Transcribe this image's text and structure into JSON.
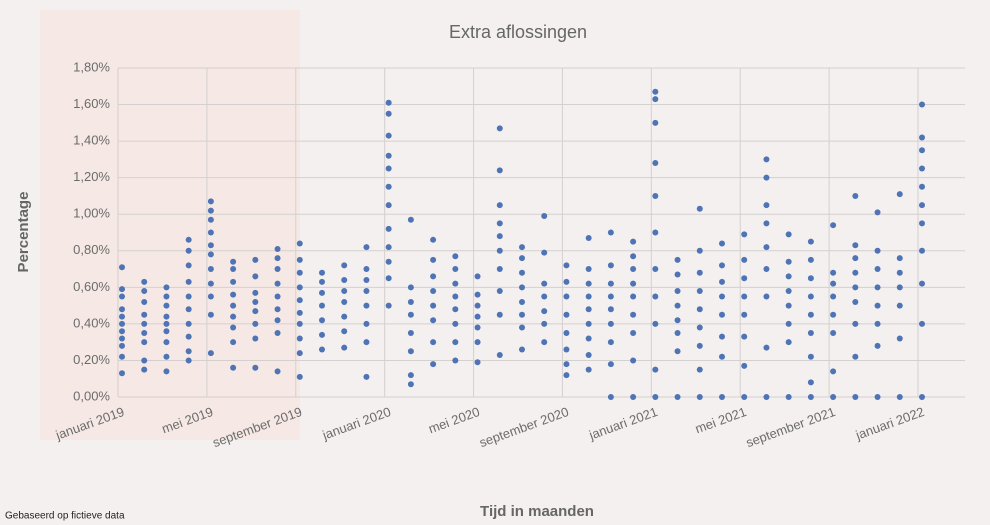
{
  "chart_data": {
    "type": "strip",
    "title": "Extra aflossingen",
    "x_label": "Tijd in maanden",
    "y_label": "Percentage",
    "footnote": "Gebaseerd op fictieve data",
    "color": "#4f74b6",
    "grid": true,
    "categories": [
      "januari 2019",
      null,
      null,
      null,
      "mei 2019",
      null,
      null,
      null,
      "september 2019",
      null,
      null,
      null,
      "januari 2020",
      null,
      null,
      null,
      "mei 2020",
      null,
      null,
      null,
      "september 2020",
      null,
      null,
      null,
      "januari 2021",
      null,
      null,
      null,
      "mei 2021",
      null,
      null,
      null,
      "september 2021",
      null,
      null,
      null,
      "januari 2022"
    ],
    "values": [
      [
        0.13,
        0.22,
        0.28,
        0.32,
        0.36,
        0.4,
        0.44,
        0.48,
        0.55,
        0.59,
        0.71
      ],
      [
        0.15,
        0.2,
        0.3,
        0.35,
        0.4,
        0.45,
        0.52,
        0.58,
        0.63
      ],
      [
        0.14,
        0.22,
        0.3,
        0.36,
        0.4,
        0.44,
        0.5,
        0.55,
        0.6
      ],
      [
        0.2,
        0.25,
        0.33,
        0.4,
        0.48,
        0.55,
        0.63,
        0.72,
        0.8,
        0.86
      ],
      [
        0.24,
        0.45,
        0.55,
        0.62,
        0.7,
        0.78,
        0.83,
        0.9,
        0.97,
        1.02,
        1.07
      ],
      [
        0.16,
        0.3,
        0.38,
        0.44,
        0.5,
        0.56,
        0.63,
        0.7,
        0.74
      ],
      [
        0.16,
        0.32,
        0.4,
        0.47,
        0.52,
        0.57,
        0.66,
        0.75
      ],
      [
        0.14,
        0.35,
        0.42,
        0.48,
        0.55,
        0.62,
        0.7,
        0.76,
        0.81
      ],
      [
        0.11,
        0.24,
        0.32,
        0.4,
        0.46,
        0.53,
        0.6,
        0.68,
        0.75,
        0.84
      ],
      [
        0.26,
        0.34,
        0.42,
        0.5,
        0.57,
        0.63,
        0.68
      ],
      [
        0.27,
        0.36,
        0.44,
        0.52,
        0.58,
        0.64,
        0.72
      ],
      [
        0.11,
        0.3,
        0.4,
        0.5,
        0.58,
        0.64,
        0.7,
        0.82
      ],
      [
        0.5,
        0.65,
        0.74,
        0.82,
        0.92,
        1.05,
        1.15,
        1.25,
        1.32,
        1.43,
        1.55,
        1.61
      ],
      [
        0.07,
        0.12,
        0.25,
        0.35,
        0.45,
        0.52,
        0.6,
        0.97
      ],
      [
        0.18,
        0.3,
        0.42,
        0.5,
        0.58,
        0.66,
        0.75,
        0.86
      ],
      [
        0.2,
        0.3,
        0.4,
        0.48,
        0.55,
        0.62,
        0.7,
        0.77
      ],
      [
        0.19,
        0.3,
        0.38,
        0.44,
        0.5,
        0.56,
        0.66
      ],
      [
        0.23,
        0.45,
        0.58,
        0.7,
        0.8,
        0.88,
        0.95,
        1.05,
        1.24,
        1.47
      ],
      [
        0.26,
        0.38,
        0.45,
        0.52,
        0.6,
        0.68,
        0.76,
        0.82
      ],
      [
        0.3,
        0.4,
        0.47,
        0.55,
        0.62,
        0.79,
        0.99
      ],
      [
        0.12,
        0.18,
        0.26,
        0.35,
        0.45,
        0.55,
        0.63,
        0.72
      ],
      [
        0.15,
        0.23,
        0.32,
        0.4,
        0.48,
        0.55,
        0.62,
        0.7,
        0.87
      ],
      [
        0.0,
        0.18,
        0.3,
        0.4,
        0.48,
        0.55,
        0.62,
        0.72,
        0.9
      ],
      [
        0.0,
        0.2,
        0.35,
        0.45,
        0.55,
        0.62,
        0.7,
        0.77,
        0.85
      ],
      [
        0.0,
        0.15,
        0.4,
        0.55,
        0.7,
        0.9,
        1.1,
        1.28,
        1.5,
        1.63,
        1.67
      ],
      [
        0.0,
        0.25,
        0.35,
        0.42,
        0.5,
        0.58,
        0.67,
        0.75
      ],
      [
        0.0,
        0.15,
        0.28,
        0.38,
        0.48,
        0.58,
        0.68,
        0.8,
        1.03
      ],
      [
        0.0,
        0.22,
        0.33,
        0.45,
        0.55,
        0.63,
        0.72,
        0.84
      ],
      [
        0.0,
        0.17,
        0.33,
        0.45,
        0.55,
        0.65,
        0.75,
        0.89
      ],
      [
        0.0,
        0.27,
        0.55,
        0.7,
        0.82,
        0.95,
        1.05,
        1.2,
        1.3
      ],
      [
        0.0,
        0.3,
        0.4,
        0.5,
        0.58,
        0.66,
        0.74,
        0.89
      ],
      [
        0.0,
        0.08,
        0.22,
        0.35,
        0.45,
        0.55,
        0.65,
        0.75,
        0.85
      ],
      [
        0.0,
        0.14,
        0.35,
        0.45,
        0.55,
        0.62,
        0.68,
        0.94
      ],
      [
        0.0,
        0.22,
        0.4,
        0.52,
        0.6,
        0.68,
        0.76,
        0.83,
        1.1
      ],
      [
        0.0,
        0.28,
        0.4,
        0.5,
        0.6,
        0.7,
        0.8,
        1.01
      ],
      [
        0.0,
        0.32,
        0.5,
        0.6,
        0.68,
        0.76,
        1.11
      ],
      [
        0.0,
        0.4,
        0.62,
        0.8,
        0.95,
        1.05,
        1.15,
        1.25,
        1.35,
        1.42,
        1.6
      ]
    ],
    "ylim": [
      0,
      1.8
    ],
    "yticks": [
      {
        "value": 0,
        "label": "0,00%"
      },
      {
        "value": 0.2,
        "label": "0,20%"
      },
      {
        "value": 0.4,
        "label": "0,40%"
      },
      {
        "value": 0.6,
        "label": "0,60%"
      },
      {
        "value": 0.8,
        "label": "0,80%"
      },
      {
        "value": 1.0,
        "label": "1,00%"
      },
      {
        "value": 1.2,
        "label": "1,20%"
      },
      {
        "value": 1.4,
        "label": "1,40%"
      },
      {
        "value": 1.6,
        "label": "1,60%"
      },
      {
        "value": 1.8,
        "label": "1,80%"
      }
    ]
  }
}
